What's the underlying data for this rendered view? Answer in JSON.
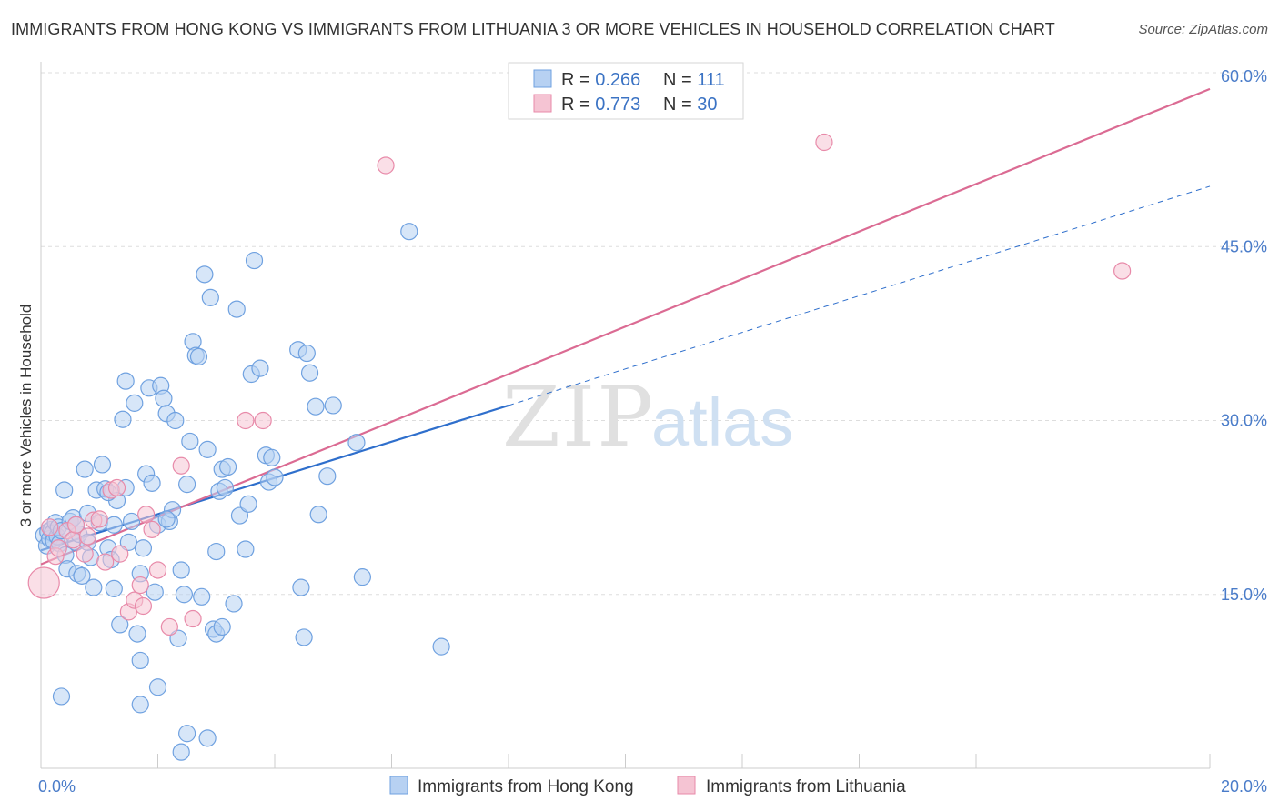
{
  "title": "IMMIGRANTS FROM HONG KONG VS IMMIGRANTS FROM LITHUANIA 3 OR MORE VEHICLES IN HOUSEHOLD CORRELATION CHART",
  "source": "Source: ZipAtlas.com",
  "watermark": {
    "zip": "ZIP",
    "atlas": "atlas"
  },
  "chart_data": {
    "type": "scatter",
    "xlabel": "",
    "ylabel": "3 or more Vehicles in Household",
    "xlim": [
      0,
      20
    ],
    "ylim": [
      0,
      60
    ],
    "x_tick_labels": [
      {
        "value": 0,
        "label": "0.0%"
      },
      {
        "value": 20,
        "label": "20.0%"
      }
    ],
    "y_tick_labels": [
      {
        "value": 15,
        "label": "15.0%"
      },
      {
        "value": 30,
        "label": "30.0%"
      },
      {
        "value": 45,
        "label": "45.0%"
      },
      {
        "value": 60,
        "label": "60.0%"
      }
    ],
    "legend": [
      {
        "r_label": "R = ",
        "r_value": "0.266",
        "n_label": "N = ",
        "n_value": "111"
      },
      {
        "r_label": "R = ",
        "r_value": "0.773",
        "n_label": "N = ",
        "n_value": "30"
      }
    ],
    "series": [
      {
        "name": "Immigrants from Hong Kong",
        "color": "#6fa1e0",
        "fill": "#b7d1f2",
        "line_color": "#2f6fcc",
        "trend": {
          "x0": 0,
          "y0": 18.8,
          "x1": 8.0,
          "y1": 31.3,
          "dash_to_x": 20.0,
          "dash_to_y": 50.2
        },
        "points": [
          [
            0.05,
            20.1
          ],
          [
            0.1,
            19.2
          ],
          [
            0.12,
            20.4
          ],
          [
            0.15,
            19.8
          ],
          [
            0.18,
            20.6
          ],
          [
            0.2,
            20.3
          ],
          [
            0.22,
            19.6
          ],
          [
            0.25,
            21.2
          ],
          [
            0.28,
            20.0
          ],
          [
            0.3,
            20.8
          ],
          [
            0.32,
            19.4
          ],
          [
            0.35,
            20.5
          ],
          [
            0.4,
            24.0
          ],
          [
            0.42,
            18.4
          ],
          [
            0.45,
            17.2
          ],
          [
            0.5,
            21.3
          ],
          [
            0.55,
            21.6
          ],
          [
            0.6,
            19.5
          ],
          [
            0.62,
            16.8
          ],
          [
            0.65,
            20.2
          ],
          [
            0.7,
            16.6
          ],
          [
            0.75,
            25.8
          ],
          [
            0.8,
            22.0
          ],
          [
            0.85,
            18.2
          ],
          [
            0.9,
            15.6
          ],
          [
            0.95,
            24.0
          ],
          [
            1.0,
            21.2
          ],
          [
            1.05,
            26.2
          ],
          [
            1.1,
            24.1
          ],
          [
            1.15,
            19.0
          ],
          [
            1.2,
            18.0
          ],
          [
            1.25,
            15.5
          ],
          [
            1.3,
            23.1
          ],
          [
            1.35,
            12.4
          ],
          [
            1.4,
            30.1
          ],
          [
            1.45,
            33.4
          ],
          [
            1.5,
            19.5
          ],
          [
            1.55,
            21.3
          ],
          [
            1.6,
            31.5
          ],
          [
            1.65,
            11.6
          ],
          [
            1.7,
            16.8
          ],
          [
            1.75,
            19.0
          ],
          [
            1.8,
            25.4
          ],
          [
            1.85,
            32.8
          ],
          [
            1.9,
            24.6
          ],
          [
            1.95,
            15.2
          ],
          [
            2.0,
            21.0
          ],
          [
            2.05,
            33.0
          ],
          [
            2.1,
            31.9
          ],
          [
            2.15,
            30.6
          ],
          [
            2.2,
            21.3
          ],
          [
            2.25,
            22.3
          ],
          [
            2.3,
            30.0
          ],
          [
            2.35,
            11.2
          ],
          [
            2.4,
            17.1
          ],
          [
            2.45,
            15.0
          ],
          [
            2.5,
            24.5
          ],
          [
            2.55,
            28.2
          ],
          [
            2.6,
            36.8
          ],
          [
            2.65,
            35.6
          ],
          [
            2.7,
            35.5
          ],
          [
            2.75,
            14.8
          ],
          [
            2.8,
            42.6
          ],
          [
            2.85,
            27.5
          ],
          [
            2.9,
            40.6
          ],
          [
            2.95,
            12.0
          ],
          [
            3.0,
            18.7
          ],
          [
            3.05,
            23.9
          ],
          [
            3.1,
            25.8
          ],
          [
            3.15,
            24.2
          ],
          [
            3.2,
            26.0
          ],
          [
            3.3,
            14.2
          ],
          [
            3.35,
            39.6
          ],
          [
            3.4,
            21.8
          ],
          [
            3.5,
            18.9
          ],
          [
            3.55,
            22.8
          ],
          [
            3.6,
            34.0
          ],
          [
            3.65,
            43.8
          ],
          [
            3.75,
            34.5
          ],
          [
            3.85,
            27.0
          ],
          [
            3.9,
            24.7
          ],
          [
            3.95,
            26.8
          ],
          [
            4.0,
            25.1
          ],
          [
            4.4,
            36.1
          ],
          [
            4.45,
            15.6
          ],
          [
            4.5,
            11.3
          ],
          [
            4.55,
            35.8
          ],
          [
            4.6,
            34.1
          ],
          [
            4.7,
            31.2
          ],
          [
            4.75,
            21.9
          ],
          [
            4.9,
            25.2
          ],
          [
            5.0,
            31.3
          ],
          [
            5.4,
            28.1
          ],
          [
            5.5,
            16.5
          ],
          [
            6.3,
            46.3
          ],
          [
            6.85,
            10.5
          ],
          [
            0.35,
            6.2
          ],
          [
            1.7,
            5.5
          ],
          [
            2.0,
            7.0
          ],
          [
            1.7,
            9.3
          ],
          [
            2.4,
            1.4
          ],
          [
            2.5,
            3.0
          ],
          [
            2.85,
            2.6
          ],
          [
            1.45,
            24.2
          ],
          [
            1.25,
            21.0
          ],
          [
            0.6,
            21.0
          ],
          [
            0.8,
            19.5
          ],
          [
            1.15,
            23.8
          ],
          [
            2.15,
            21.5
          ],
          [
            3.0,
            11.6
          ],
          [
            3.1,
            12.2
          ]
        ]
      },
      {
        "name": "Immigrants from Lithuania",
        "color": "#e88aa9",
        "fill": "#f5c4d3",
        "line_color": "#db6b93",
        "trend": {
          "x0": 0,
          "y0": 17.6,
          "x1": 20.0,
          "y1": 58.6
        },
        "points": [
          [
            0.05,
            16.0
          ],
          [
            0.15,
            20.8
          ],
          [
            0.25,
            18.3
          ],
          [
            0.3,
            19.0
          ],
          [
            0.45,
            20.5
          ],
          [
            0.55,
            19.7
          ],
          [
            0.6,
            21.0
          ],
          [
            0.75,
            18.5
          ],
          [
            0.8,
            20.0
          ],
          [
            0.9,
            21.4
          ],
          [
            1.0,
            21.5
          ],
          [
            1.1,
            17.8
          ],
          [
            1.2,
            24.0
          ],
          [
            1.3,
            24.2
          ],
          [
            1.35,
            18.5
          ],
          [
            1.5,
            13.5
          ],
          [
            1.6,
            14.5
          ],
          [
            1.7,
            15.8
          ],
          [
            1.75,
            14.0
          ],
          [
            1.8,
            21.9
          ],
          [
            1.9,
            20.6
          ],
          [
            2.0,
            17.1
          ],
          [
            2.2,
            12.2
          ],
          [
            2.4,
            26.1
          ],
          [
            2.6,
            12.9
          ],
          [
            3.5,
            30.0
          ],
          [
            3.8,
            30.0
          ],
          [
            5.9,
            52.0
          ],
          [
            13.4,
            54.0
          ],
          [
            18.5,
            42.9
          ]
        ]
      }
    ]
  }
}
